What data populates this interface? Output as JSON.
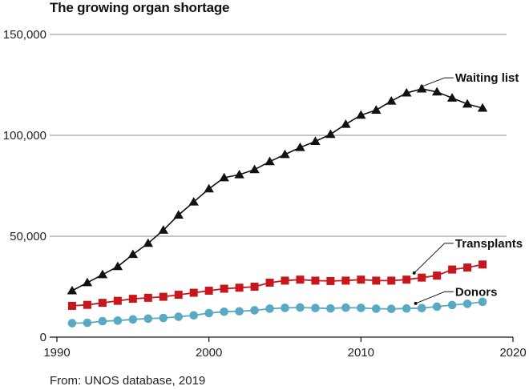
{
  "chart_data": {
    "type": "line",
    "title": "The growing organ shortage",
    "source": "From: UNOS database, 2019",
    "xlabel": "",
    "ylabel": "",
    "xlim": [
      1990,
      2020
    ],
    "ylim": [
      0,
      150000
    ],
    "x_ticks": [
      1990,
      2000,
      2010,
      2020
    ],
    "y_ticks": [
      {
        "value": 0,
        "label": "0"
      },
      {
        "value": 50000,
        "label": "50,000"
      },
      {
        "value": 100000,
        "label": "100,000"
      },
      {
        "value": 150000,
        "label": "150,000"
      }
    ],
    "grid": "horizontal",
    "x": [
      1991,
      1992,
      1993,
      1994,
      1995,
      1996,
      1997,
      1998,
      1999,
      2000,
      2001,
      2002,
      2003,
      2004,
      2005,
      2006,
      2007,
      2008,
      2009,
      2010,
      2011,
      2012,
      2013,
      2014,
      2015,
      2016,
      2017,
      2018
    ],
    "series": [
      {
        "name": "Waiting list",
        "color": "#111111",
        "marker": "triangle",
        "values": [
          23000,
          27000,
          31000,
          35000,
          41000,
          46500,
          53000,
          60500,
          67000,
          73500,
          79000,
          80500,
          83000,
          87000,
          90500,
          94000,
          97000,
          100500,
          105500,
          110000,
          112500,
          117000,
          121000,
          123000,
          121500,
          118500,
          115500,
          113500
        ]
      },
      {
        "name": "Transplants",
        "color": "#c8161d",
        "marker": "square",
        "values": [
          15500,
          16000,
          17000,
          18000,
          19000,
          19500,
          20000,
          21000,
          22000,
          23000,
          24000,
          24500,
          25000,
          27000,
          28000,
          28500,
          28000,
          27800,
          28000,
          28500,
          28000,
          28000,
          28500,
          29500,
          30500,
          33500,
          34500,
          36000
        ]
      },
      {
        "name": "Donors",
        "color": "#5aa9c4",
        "marker": "circle",
        "values": [
          6900,
          7100,
          7900,
          8200,
          8800,
          9200,
          9500,
          10100,
          10800,
          11900,
          12600,
          12800,
          13300,
          14100,
          14500,
          14700,
          14400,
          14200,
          14600,
          14500,
          14100,
          14000,
          14200,
          14400,
          15100,
          15900,
          16500,
          17500
        ]
      }
    ]
  }
}
